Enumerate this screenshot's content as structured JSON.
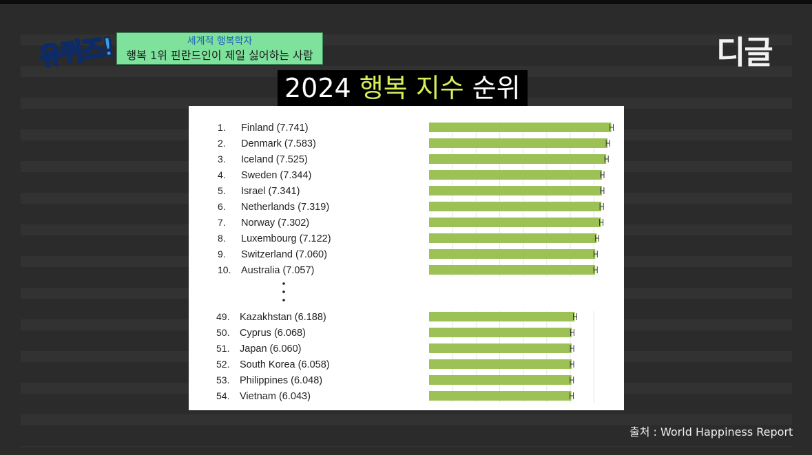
{
  "show": {
    "logo_text": "유퀴즈!",
    "caption_sub": "세계적 행복학자",
    "caption_main": "행복 1위 핀란드인이 제일 싫어하는 사람",
    "brand": "디글",
    "title_prefix": "2024 ",
    "title_highlight": "행복 지수",
    "title_suffix": " 순위",
    "source": "출처 : World Happiness Report"
  },
  "colors": {
    "bar": "#9cc255",
    "caption_bg": "#7ee29c",
    "title_highlight": "#d6ee5a"
  },
  "chart_data": {
    "type": "bar",
    "orientation": "horizontal",
    "title": "2024 행복 지수 순위",
    "ellipsis": "⋮",
    "groups": [
      {
        "rows": [
          {
            "rank": "1.",
            "country": "Finland",
            "value": 7.741,
            "label": "Finland (7.741)"
          },
          {
            "rank": "2.",
            "country": "Denmark",
            "value": 7.583,
            "label": "Denmark (7.583)"
          },
          {
            "rank": "3.",
            "country": "Iceland",
            "value": 7.525,
            "label": "Iceland (7.525)"
          },
          {
            "rank": "4.",
            "country": "Sweden",
            "value": 7.344,
            "label": "Sweden (7.344)"
          },
          {
            "rank": "5.",
            "country": "Israel",
            "value": 7.341,
            "label": "Israel (7.341)"
          },
          {
            "rank": "6.",
            "country": "Netherlands",
            "value": 7.319,
            "label": "Netherlands (7.319)"
          },
          {
            "rank": "7.",
            "country": "Norway",
            "value": 7.302,
            "label": "Norway (7.302)"
          },
          {
            "rank": "8.",
            "country": "Luxembourg",
            "value": 7.122,
            "label": "Luxembourg (7.122)"
          },
          {
            "rank": "9.",
            "country": "Switzerland",
            "value": 7.06,
            "label": "Switzerland (7.060)"
          },
          {
            "rank": "10.",
            "country": "Australia",
            "value": 7.057,
            "label": "Australia (7.057)"
          }
        ]
      },
      {
        "rows": [
          {
            "rank": "49.",
            "country": "Kazakhstan",
            "value": 6.188,
            "label": "Kazakhstan (6.188)"
          },
          {
            "rank": "50.",
            "country": "Cyprus",
            "value": 6.068,
            "label": "Cyprus (6.068)"
          },
          {
            "rank": "51.",
            "country": "Japan",
            "value": 6.06,
            "label": "Japan (6.060)"
          },
          {
            "rank": "52.",
            "country": "South Korea",
            "value": 6.058,
            "label": "South Korea (6.058)"
          },
          {
            "rank": "53.",
            "country": "Philippines",
            "value": 6.048,
            "label": "Philippines (6.048)"
          },
          {
            "rank": "54.",
            "country": "Vietnam",
            "value": 6.043,
            "label": "Vietnam (6.043)"
          }
        ]
      }
    ],
    "xlim": [
      0,
      7.9
    ],
    "grid": true,
    "error_bars": true
  }
}
